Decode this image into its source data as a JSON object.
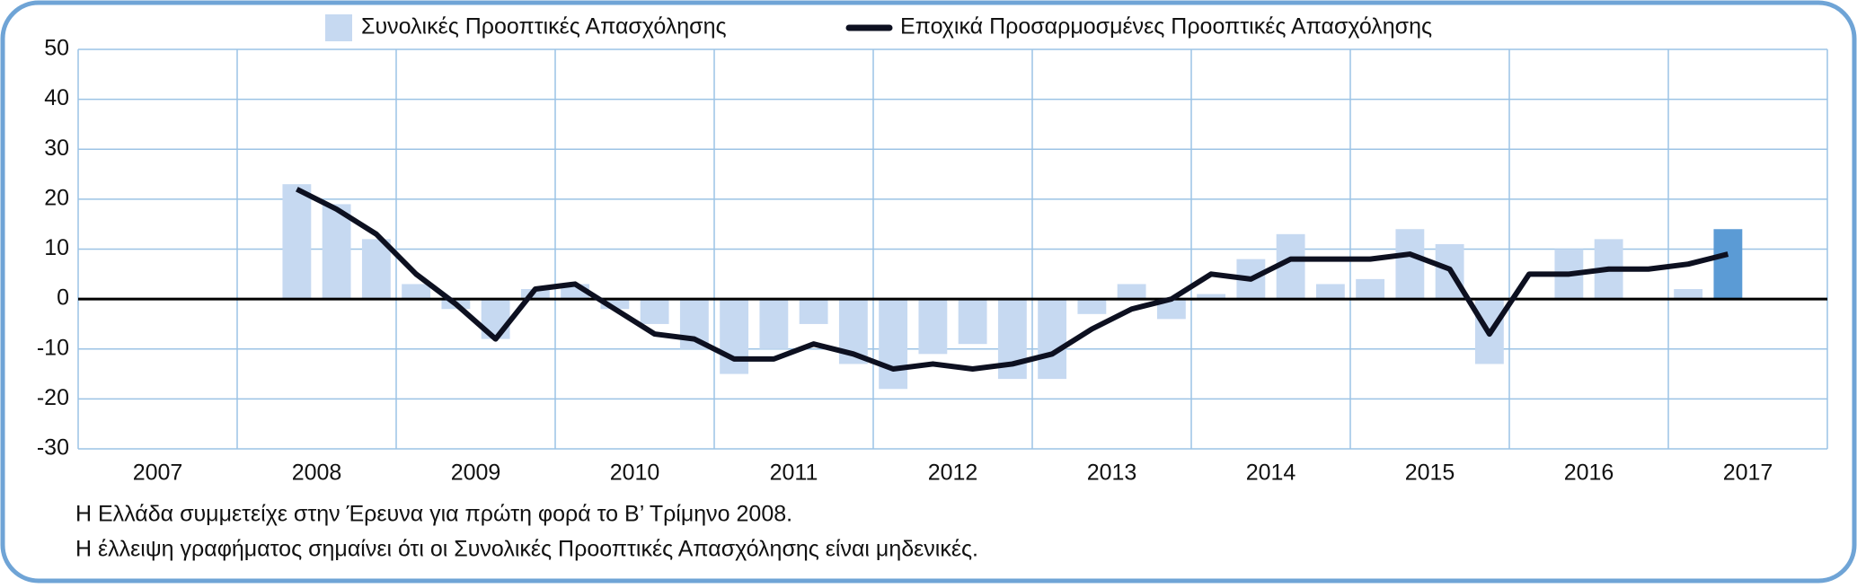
{
  "chart_data": {
    "type": "bar_line",
    "legend": [
      "Συνολικές Προοπτικές Απασχόλησης",
      "Εποχικά Προσαρμοσμένες Προοπτικές Απασχόλησης"
    ],
    "years": [
      "2007",
      "2008",
      "2009",
      "2010",
      "2011",
      "2012",
      "2013",
      "2014",
      "2015",
      "2016",
      "2017"
    ],
    "quarters_per_year": 4,
    "series": [
      {
        "name": "Συνολικές Προοπτικές Απασχόλησης",
        "color": "#c6d9f1",
        "highlight_color": "#5b9bd5",
        "highlight_index": 41,
        "values": [
          null,
          null,
          null,
          null,
          null,
          23,
          19,
          12,
          3,
          -2,
          -8,
          2,
          3,
          -2,
          -5,
          -10,
          -15,
          -10,
          -5,
          -13,
          -18,
          -11,
          -9,
          -16,
          -16,
          -3,
          3,
          -4,
          1,
          8,
          13,
          3,
          4,
          14,
          11,
          -13,
          0,
          10,
          12,
          0,
          2,
          14,
          null,
          null
        ]
      },
      {
        "name": "Εποχικά Προσαρμοσμένες Προοπτικές Απασχόλησης",
        "color": "#0d1020",
        "values": [
          null,
          null,
          null,
          null,
          null,
          22,
          18,
          13,
          5,
          -1,
          -8,
          2,
          3,
          -2,
          -7,
          -8,
          -12,
          -12,
          -9,
          -11,
          -14,
          -13,
          -14,
          -13,
          -11,
          -6,
          -2,
          0,
          5,
          4,
          8,
          8,
          8,
          9,
          6,
          -7,
          5,
          5,
          6,
          6,
          7,
          9,
          null,
          null
        ]
      }
    ],
    "ylim": [
      -30,
      50
    ],
    "yticks": [
      -30,
      -20,
      -10,
      0,
      10,
      20,
      30,
      40,
      50
    ],
    "grid": true,
    "notes": [
      "Η Ελλάδα συμμετείχε στην Έρευνα για πρώτη φορά το Β’ Τρίμηνο 2008.",
      "Η έλλειψη γραφήματος σημαίνει ότι οι Συνολικές Προοπτικές Απασχόλησης είναι μηδενικές."
    ]
  }
}
